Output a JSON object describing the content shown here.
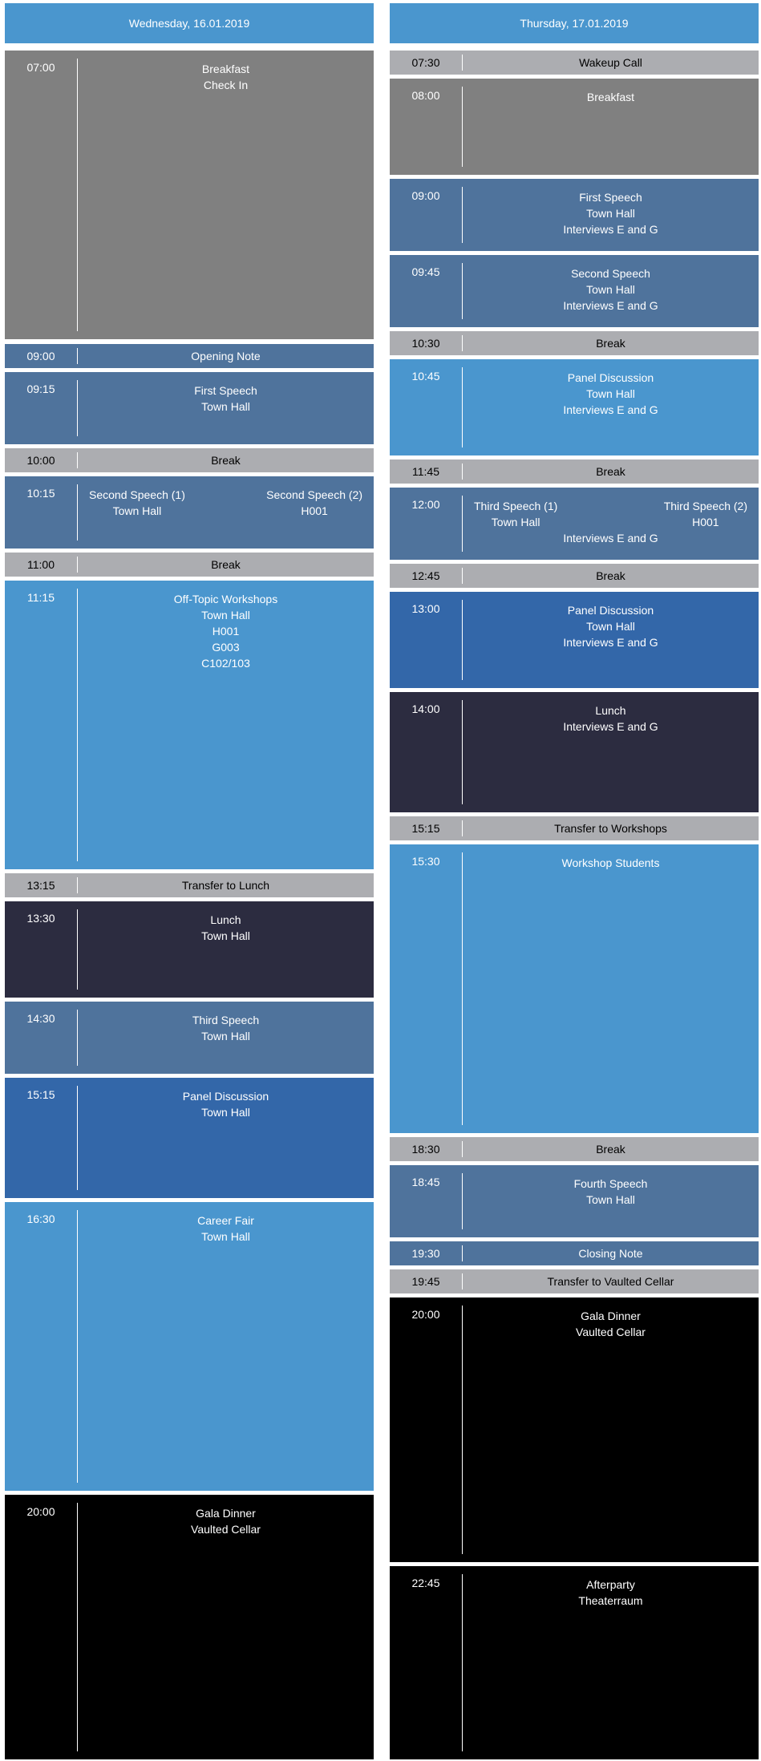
{
  "days": [
    {
      "header": "Wednesday, 16.01.2019",
      "events": [
        {
          "time": "07:00",
          "lines": [
            "Breakfast",
            "Check In"
          ]
        },
        {
          "time": "09:00",
          "lines": [
            "Opening Note"
          ]
        },
        {
          "time": "09:15",
          "lines": [
            "First Speech",
            "Town Hall"
          ]
        },
        {
          "time": "10:00",
          "lines": [
            "Break"
          ]
        },
        {
          "time": "10:15",
          "split": [
            [
              "Second Speech (1)",
              "Town Hall"
            ],
            [
              "Second Speech (2)",
              "H001"
            ]
          ]
        },
        {
          "time": "11:00",
          "lines": [
            "Break"
          ]
        },
        {
          "time": "11:15",
          "lines": [
            "Off-Topic Workshops",
            "Town Hall",
            "H001",
            "G003",
            "C102/103"
          ]
        },
        {
          "time": "13:15",
          "lines": [
            "Transfer to Lunch"
          ]
        },
        {
          "time": "13:30",
          "lines": [
            "Lunch",
            "Town Hall"
          ]
        },
        {
          "time": "14:30",
          "lines": [
            "Third Speech",
            "Town Hall"
          ]
        },
        {
          "time": "15:15",
          "lines": [
            "Panel Discussion",
            "Town Hall"
          ]
        },
        {
          "time": "16:30",
          "lines": [
            "Career Fair",
            "Town Hall"
          ]
        },
        {
          "time": "20:00",
          "lines": [
            "Gala Dinner",
            "Vaulted Cellar"
          ]
        }
      ]
    },
    {
      "header": "Thursday, 17.01.2019",
      "events": [
        {
          "time": "07:30",
          "lines": [
            "Wakeup Call"
          ]
        },
        {
          "time": "08:00",
          "lines": [
            "Breakfast"
          ]
        },
        {
          "time": "09:00",
          "lines": [
            "First Speech",
            "Town Hall",
            "Interviews E and G"
          ]
        },
        {
          "time": "09:45",
          "lines": [
            "Second Speech",
            "Town Hall",
            "Interviews E and G"
          ]
        },
        {
          "time": "10:30",
          "lines": [
            "Break"
          ]
        },
        {
          "time": "10:45",
          "lines": [
            "Panel Discussion",
            "Town Hall",
            "Interviews E and G"
          ]
        },
        {
          "time": "11:45",
          "lines": [
            "Break"
          ]
        },
        {
          "time": "12:00",
          "split": [
            [
              "Third Speech (1)",
              "Town Hall"
            ],
            [
              "Third Speech (2)",
              "H001"
            ]
          ],
          "extra": "Interviews E and G"
        },
        {
          "time": "12:45",
          "lines": [
            "Break"
          ]
        },
        {
          "time": "13:00",
          "lines": [
            "Panel Discussion",
            "Town Hall",
            "Interviews E and G"
          ]
        },
        {
          "time": "14:00",
          "lines": [
            "Lunch",
            "Interviews E and G"
          ]
        },
        {
          "time": "15:15",
          "lines": [
            "Transfer to Workshops"
          ]
        },
        {
          "time": "15:30",
          "lines": [
            "Workshop Students"
          ]
        },
        {
          "time": "18:30",
          "lines": [
            "Break"
          ]
        },
        {
          "time": "18:45",
          "lines": [
            "Fourth Speech",
            "Town Hall"
          ]
        },
        {
          "time": "19:30",
          "lines": [
            "Closing Note"
          ]
        },
        {
          "time": "19:45",
          "lines": [
            "Transfer to Vaulted Cellar"
          ]
        },
        {
          "time": "20:00",
          "lines": [
            "Gala Dinner",
            "Vaulted Cellar"
          ]
        },
        {
          "time": "22:45",
          "lines": [
            "Afterparty",
            "Theaterraum"
          ]
        }
      ]
    }
  ],
  "colors": {
    "header": "#4a96ce",
    "break": "#acadb1",
    "meal": "#808080",
    "speech": "#4f739c",
    "workshop": "#4a96ce",
    "panel": "#3367a9",
    "lunch": "#2c2c40",
    "evening": "#000000"
  }
}
